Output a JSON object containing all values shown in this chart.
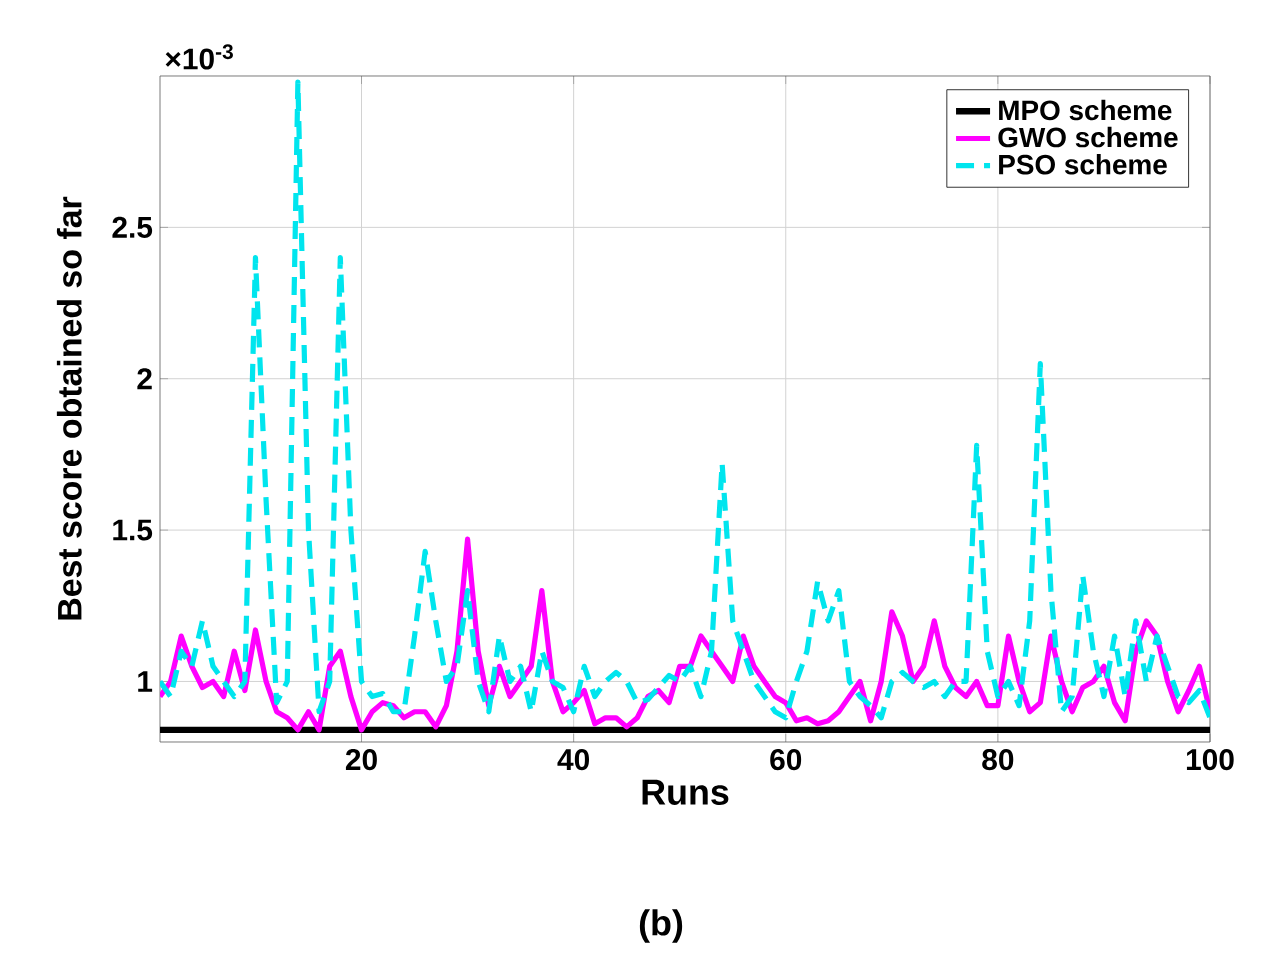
{
  "chart_data": {
    "type": "line",
    "xlabel": "Runs",
    "ylabel": "Best score obtained so far",
    "annotations": [
      "×10$^{-3}$",
      "(b)"
    ],
    "x": [
      1,
      2,
      3,
      4,
      5,
      6,
      7,
      8,
      9,
      10,
      11,
      12,
      13,
      14,
      15,
      16,
      17,
      18,
      19,
      20,
      21,
      22,
      23,
      24,
      25,
      26,
      27,
      28,
      29,
      30,
      31,
      32,
      33,
      34,
      35,
      36,
      37,
      38,
      39,
      40,
      41,
      42,
      43,
      44,
      45,
      46,
      47,
      48,
      49,
      50,
      51,
      52,
      53,
      54,
      55,
      56,
      57,
      58,
      59,
      60,
      61,
      62,
      63,
      64,
      65,
      66,
      67,
      68,
      69,
      70,
      71,
      72,
      73,
      74,
      75,
      76,
      77,
      78,
      79,
      80,
      81,
      82,
      83,
      84,
      85,
      86,
      87,
      88,
      89,
      90,
      91,
      92,
      93,
      94,
      95,
      96,
      97,
      98,
      99,
      100
    ],
    "xlim": [
      1,
      100
    ],
    "xticks": [
      20,
      40,
      60,
      80,
      100
    ],
    "ylim": [
      0.8,
      3.0
    ],
    "yticks": [
      1,
      1.5,
      2,
      2.5
    ],
    "grid": true,
    "legend": "top right",
    "series": [
      {
        "name": "MPO scheme",
        "color": "#000000",
        "line_style": "solid",
        "values": [
          0.84,
          0.84,
          0.84,
          0.84,
          0.84,
          0.84,
          0.84,
          0.84,
          0.84,
          0.84,
          0.84,
          0.84,
          0.84,
          0.84,
          0.84,
          0.84,
          0.84,
          0.84,
          0.84,
          0.84,
          0.84,
          0.84,
          0.84,
          0.84,
          0.84,
          0.84,
          0.84,
          0.84,
          0.84,
          0.84,
          0.84,
          0.84,
          0.84,
          0.84,
          0.84,
          0.84,
          0.84,
          0.84,
          0.84,
          0.84,
          0.84,
          0.84,
          0.84,
          0.84,
          0.84,
          0.84,
          0.84,
          0.84,
          0.84,
          0.84,
          0.84,
          0.84,
          0.84,
          0.84,
          0.84,
          0.84,
          0.84,
          0.84,
          0.84,
          0.84,
          0.84,
          0.84,
          0.84,
          0.84,
          0.84,
          0.84,
          0.84,
          0.84,
          0.84,
          0.84,
          0.84,
          0.84,
          0.84,
          0.84,
          0.84,
          0.84,
          0.84,
          0.84,
          0.84,
          0.84,
          0.84,
          0.84,
          0.84,
          0.84,
          0.84,
          0.84,
          0.84,
          0.84,
          0.84,
          0.84,
          0.84,
          0.84,
          0.84,
          0.84,
          0.84,
          0.84,
          0.84,
          0.84,
          0.84,
          0.84
        ]
      },
      {
        "name": "GWO scheme",
        "color": "#ff00ff",
        "line_style": "solid",
        "values": [
          0.95,
          1.0,
          1.15,
          1.05,
          0.98,
          1.0,
          0.95,
          1.1,
          0.97,
          1.17,
          1.0,
          0.9,
          0.88,
          0.84,
          0.9,
          0.84,
          1.05,
          1.1,
          0.95,
          0.84,
          0.9,
          0.93,
          0.92,
          0.88,
          0.9,
          0.9,
          0.85,
          0.92,
          1.1,
          1.47,
          1.1,
          0.92,
          1.05,
          0.95,
          1.0,
          1.05,
          1.3,
          1.0,
          0.9,
          0.93,
          0.97,
          0.86,
          0.88,
          0.88,
          0.85,
          0.88,
          0.95,
          0.97,
          0.93,
          1.05,
          1.05,
          1.15,
          1.1,
          1.05,
          1.0,
          1.15,
          1.05,
          1.0,
          0.95,
          0.93,
          0.87,
          0.88,
          0.86,
          0.87,
          0.9,
          0.95,
          1.0,
          0.87,
          1.0,
          1.23,
          1.15,
          1.0,
          1.05,
          1.2,
          1.05,
          0.98,
          0.95,
          1.0,
          0.92,
          0.92,
          1.15,
          1.0,
          0.9,
          0.93,
          1.15,
          1.0,
          0.9,
          0.98,
          1.0,
          1.05,
          0.93,
          0.87,
          1.1,
          1.2,
          1.15,
          1.0,
          0.9,
          0.97,
          1.05,
          0.9
        ]
      },
      {
        "name": "PSO scheme",
        "color": "#00e5ee",
        "line_style": "dashed",
        "values": [
          1.0,
          0.95,
          1.1,
          1.05,
          1.2,
          1.05,
          1.0,
          0.95,
          1.0,
          2.4,
          1.6,
          0.93,
          1.0,
          2.98,
          1.5,
          0.9,
          1.0,
          2.4,
          1.5,
          1.0,
          0.95,
          0.96,
          0.9,
          0.9,
          1.15,
          1.43,
          1.2,
          1.0,
          1.05,
          1.3,
          1.0,
          0.9,
          1.15,
          1.0,
          1.05,
          0.9,
          1.1,
          1.0,
          0.98,
          0.9,
          1.05,
          0.95,
          1.0,
          1.03,
          1.0,
          0.93,
          0.94,
          0.98,
          1.02,
          1.0,
          1.05,
          0.95,
          1.1,
          1.72,
          1.2,
          1.1,
          1.0,
          0.95,
          0.9,
          0.88,
          1.0,
          1.1,
          1.33,
          1.2,
          1.3,
          1.0,
          0.95,
          0.92,
          0.88,
          1.0,
          1.03,
          1.0,
          0.98,
          1.0,
          0.95,
          1.0,
          1.0,
          1.78,
          1.1,
          0.95,
          1.0,
          0.92,
          1.2,
          2.05,
          1.3,
          0.9,
          0.95,
          1.35,
          1.1,
          0.95,
          1.15,
          0.95,
          1.2,
          1.0,
          1.15,
          1.05,
          0.95,
          0.93,
          0.97,
          0.88
        ]
      }
    ]
  }
}
